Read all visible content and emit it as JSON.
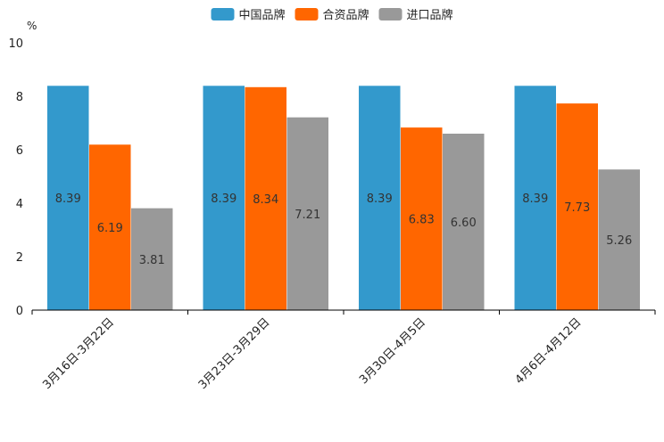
{
  "chart_data": {
    "type": "bar",
    "title": "",
    "xlabel": "",
    "ylabel": "%",
    "ylim": [
      0,
      10
    ],
    "yticks": [
      0,
      2,
      4,
      6,
      8,
      10
    ],
    "categories": [
      "3月16日-3月22日",
      "3月23日-3月29日",
      "3月30日-4月5日",
      "4月6日-4月12日"
    ],
    "series": [
      {
        "name": "中国品牌",
        "color": "#3399cc",
        "values": [
          8.39,
          8.39,
          8.39,
          8.39
        ]
      },
      {
        "name": "合资品牌",
        "color": "#ff6600",
        "values": [
          6.19,
          8.34,
          6.83,
          7.73
        ]
      },
      {
        "name": "进口品牌",
        "color": "#999999",
        "values": [
          3.81,
          7.21,
          6.6,
          5.26
        ]
      }
    ],
    "legend_position": "top-center",
    "grid": false
  }
}
